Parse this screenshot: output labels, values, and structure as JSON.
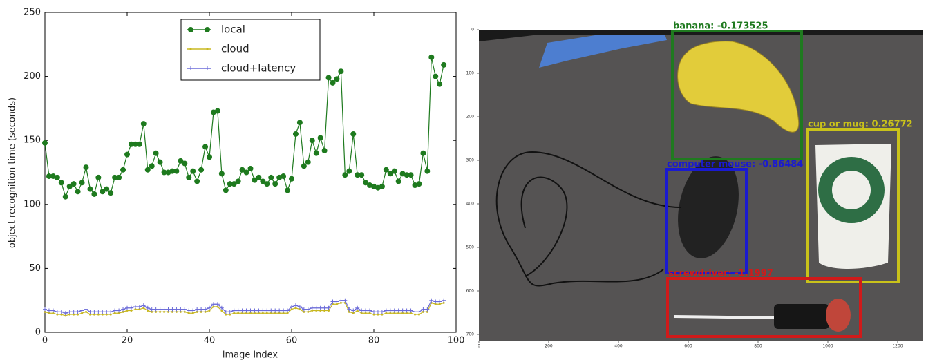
{
  "chart_data": {
    "type": "line",
    "xlabel": "image index",
    "ylabel": "object recognition time (seconds)",
    "xlim": [
      0,
      100
    ],
    "xticks": [
      0,
      20,
      40,
      60,
      80,
      100
    ],
    "ylim": [
      0,
      250
    ],
    "yticks": [
      0,
      50,
      100,
      150,
      200,
      250
    ],
    "legend": "upper center",
    "x": [
      0,
      1,
      2,
      3,
      4,
      5,
      6,
      7,
      8,
      9,
      10,
      11,
      12,
      13,
      14,
      15,
      16,
      17,
      18,
      19,
      20,
      21,
      22,
      23,
      24,
      25,
      26,
      27,
      28,
      29,
      30,
      31,
      32,
      33,
      34,
      35,
      36,
      37,
      38,
      39,
      40,
      41,
      42,
      43,
      44,
      45,
      46,
      47,
      48,
      49,
      50,
      51,
      52,
      53,
      54,
      55,
      56,
      57,
      58,
      59,
      60,
      61,
      62,
      63,
      64,
      65,
      66,
      67,
      68,
      69,
      70,
      71,
      72,
      73,
      74,
      75,
      76,
      77,
      78,
      79,
      80,
      81,
      82,
      83,
      84,
      85,
      86,
      87,
      88,
      89,
      90,
      91,
      92,
      93,
      94,
      95,
      96,
      97
    ],
    "series": [
      {
        "name": "local",
        "color": "#1e7a1e",
        "marker": "circle",
        "values": [
          148,
          122,
          122,
          121,
          117,
          106,
          114,
          116,
          110,
          117,
          129,
          112,
          108,
          121,
          110,
          112,
          109,
          121,
          121,
          127,
          139,
          147,
          147,
          147,
          163,
          127,
          130,
          140,
          133,
          125,
          125,
          126,
          126,
          134,
          132,
          121,
          126,
          118,
          127,
          145,
          137,
          172,
          173,
          124,
          111,
          116,
          116,
          118,
          127,
          125,
          128,
          119,
          121,
          118,
          116,
          121,
          116,
          121,
          122,
          111,
          120,
          155,
          164,
          130,
          133,
          150,
          140,
          152,
          142,
          199,
          195,
          198,
          204,
          123,
          126,
          155,
          123,
          123,
          117,
          115,
          114,
          113,
          114,
          127,
          124,
          126,
          118,
          124,
          123,
          123,
          115,
          116,
          140,
          126,
          215,
          200,
          194,
          209
        ]
      },
      {
        "name": "cloud",
        "color": "#c8b820",
        "marker": "dot",
        "values": [
          16,
          15,
          15,
          14,
          14,
          13,
          14,
          14,
          14,
          15,
          16,
          14,
          14,
          14,
          14,
          14,
          14,
          15,
          15,
          16,
          17,
          17,
          18,
          18,
          19,
          17,
          16,
          16,
          16,
          16,
          16,
          16,
          16,
          16,
          16,
          15,
          15,
          16,
          16,
          16,
          17,
          20,
          20,
          17,
          14,
          14,
          15,
          15,
          15,
          15,
          15,
          15,
          15,
          15,
          15,
          15,
          15,
          15,
          15,
          15,
          18,
          19,
          18,
          16,
          16,
          17,
          17,
          17,
          17,
          17,
          22,
          22,
          23,
          23,
          16,
          15,
          17,
          15,
          15,
          15,
          14,
          14,
          14,
          15,
          15,
          15,
          15,
          15,
          15,
          15,
          14,
          14,
          16,
          16,
          23,
          22,
          22,
          23
        ]
      },
      {
        "name": "cloud+latency",
        "color": "#6a6ad8",
        "marker": "plus",
        "values": [
          18,
          17,
          17,
          16,
          16,
          15,
          16,
          16,
          16,
          17,
          18,
          16,
          16,
          16,
          16,
          16,
          16,
          17,
          17,
          18,
          19,
          19,
          20,
          20,
          21,
          19,
          18,
          18,
          18,
          18,
          18,
          18,
          18,
          18,
          18,
          17,
          17,
          18,
          18,
          18,
          19,
          22,
          22,
          19,
          16,
          16,
          17,
          17,
          17,
          17,
          17,
          17,
          17,
          17,
          17,
          17,
          17,
          17,
          17,
          17,
          20,
          21,
          20,
          18,
          18,
          19,
          19,
          19,
          19,
          19,
          24,
          24,
          25,
          25,
          18,
          17,
          19,
          17,
          17,
          17,
          16,
          16,
          16,
          17,
          17,
          17,
          17,
          17,
          17,
          17,
          16,
          16,
          18,
          18,
          25,
          24,
          24,
          25
        ]
      }
    ]
  },
  "image": {
    "xticks": [
      0,
      200,
      400,
      600,
      800,
      1000,
      1200
    ],
    "yticks": [
      0,
      100,
      200,
      300,
      400,
      500,
      600,
      700
    ],
    "detections": [
      {
        "label": "banana: -0.173525",
        "color": "#1f7a1f"
      },
      {
        "label": "cup or mug: 0.26772",
        "color": "#c9c21a"
      },
      {
        "label": "computer mouse: -0.86484",
        "color": "#1a1ad0"
      },
      {
        "label": "screwdriver: -1.1997",
        "color": "#d01a1a"
      }
    ]
  }
}
